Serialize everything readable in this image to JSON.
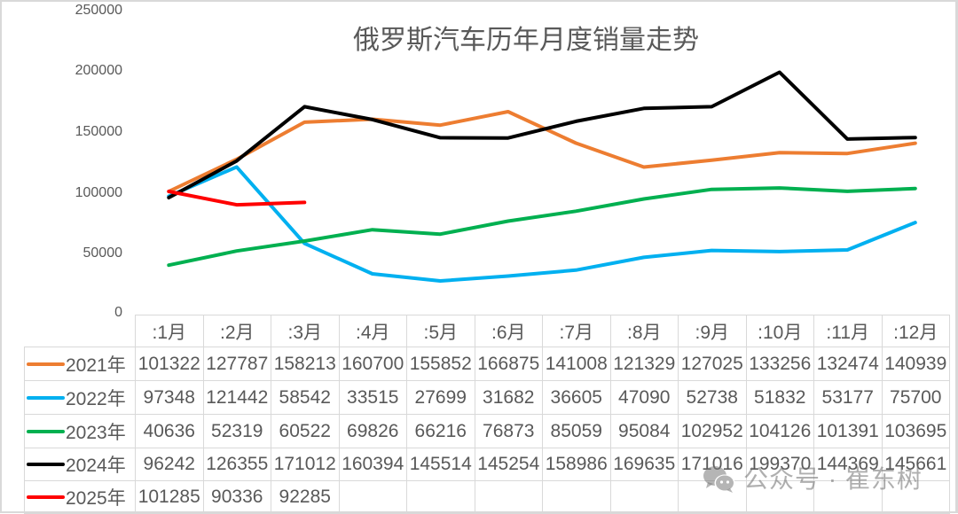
{
  "chart_data": {
    "type": "line",
    "title": "俄罗斯汽车历年月度销量走势",
    "xlabel": "",
    "ylabel": "",
    "ylim": [
      0,
      250000
    ],
    "yticks": [
      250000,
      200000,
      150000,
      100000,
      50000,
      0
    ],
    "grid": false,
    "legend_position": "data-table-below",
    "categories": [
      ":1月",
      ":2月",
      ":3月",
      ":4月",
      ":5月",
      ":6月",
      ":7月",
      ":8月",
      ":9月",
      ":10月",
      ":11月",
      ":12月"
    ],
    "series": [
      {
        "name": "2021年",
        "color": "#ED7D31",
        "values": [
          101322,
          127787,
          158213,
          160700,
          155852,
          166875,
          141008,
          121329,
          127025,
          133256,
          132474,
          140939
        ]
      },
      {
        "name": "2022年",
        "color": "#00B0F0",
        "values": [
          97348,
          121442,
          58542,
          33515,
          27699,
          31682,
          36605,
          47090,
          52738,
          51832,
          53177,
          75700
        ]
      },
      {
        "name": "2023年",
        "color": "#00B050",
        "values": [
          40636,
          52319,
          60522,
          69826,
          66216,
          76873,
          85059,
          95084,
          102952,
          104126,
          101391,
          103695
        ]
      },
      {
        "name": "2024年",
        "color": "#000000",
        "values": [
          96242,
          126355,
          171012,
          160394,
          145514,
          145254,
          158986,
          169635,
          171016,
          199370,
          144369,
          145661
        ]
      },
      {
        "name": "2025年",
        "color": "#FF0000",
        "values": [
          101285,
          90336,
          92285,
          null,
          null,
          null,
          null,
          null,
          null,
          null,
          null,
          null
        ]
      }
    ]
  },
  "watermark": {
    "icon": "wechat-icon",
    "text": "公众号 · 崔东树"
  }
}
